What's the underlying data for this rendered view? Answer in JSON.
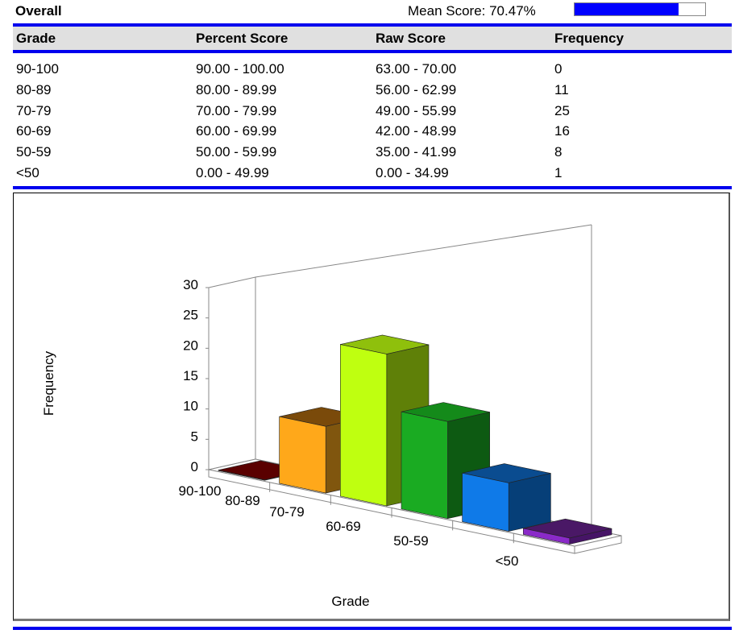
{
  "header": {
    "title": "Overall",
    "mean_label": "Mean Score: 70.47%",
    "mean_percent": 70.47,
    "mean_bar_color": "#0000ff"
  },
  "table": {
    "columns": [
      "Grade",
      "Percent Score",
      "Raw Score",
      "Frequency"
    ],
    "rows": [
      {
        "grade": "90-100",
        "percent": "90.00 - 100.00",
        "raw": "63.00 - 70.00",
        "freq": "0"
      },
      {
        "grade": "80-89",
        "percent": "80.00 - 89.99",
        "raw": "56.00 - 62.99",
        "freq": "11"
      },
      {
        "grade": "70-79",
        "percent": "70.00 - 79.99",
        "raw": "49.00 - 55.99",
        "freq": "25"
      },
      {
        "grade": "60-69",
        "percent": "60.00 - 69.99",
        "raw": "42.00 - 48.99",
        "freq": "16"
      },
      {
        "grade": "50-59",
        "percent": "50.00 - 59.99",
        "raw": "35.00 - 41.99",
        "freq": "8"
      },
      {
        "grade": "<50",
        "percent": "0.00 - 49.99",
        "raw": "0.00 - 34.99",
        "freq": "1"
      }
    ]
  },
  "colors": {
    "rule": "#0000ee",
    "header_bg": "#e0e0e0"
  },
  "chart_data": {
    "type": "bar",
    "title": "",
    "xlabel": "Grade",
    "ylabel": "Frequency",
    "categories": [
      "90-100",
      "80-89",
      "70-79",
      "60-69",
      "50-59",
      "<50"
    ],
    "values": [
      0,
      11,
      25,
      16,
      8,
      1
    ],
    "ylim": [
      0,
      30
    ],
    "yticks": [
      0,
      5,
      10,
      15,
      20,
      25,
      30
    ],
    "grid": false,
    "legend": null,
    "style": "3d",
    "bar_colors": [
      {
        "front": "#7a0000",
        "side": "#4a0000",
        "top": "#5a0000"
      },
      {
        "front": "#ffa81a",
        "side": "#80560e",
        "top": "#7a4a0a"
      },
      {
        "front": "#bfff10",
        "side": "#5f8008",
        "top": "#8fc00c"
      },
      {
        "front": "#1aab22",
        "side": "#0d5a12",
        "top": "#148a1a"
      },
      {
        "front": "#0f7ae8",
        "side": "#063f78",
        "top": "#0a4c90"
      },
      {
        "front": "#8a2ac8",
        "side": "#461466",
        "top": "#4a1866"
      }
    ]
  }
}
